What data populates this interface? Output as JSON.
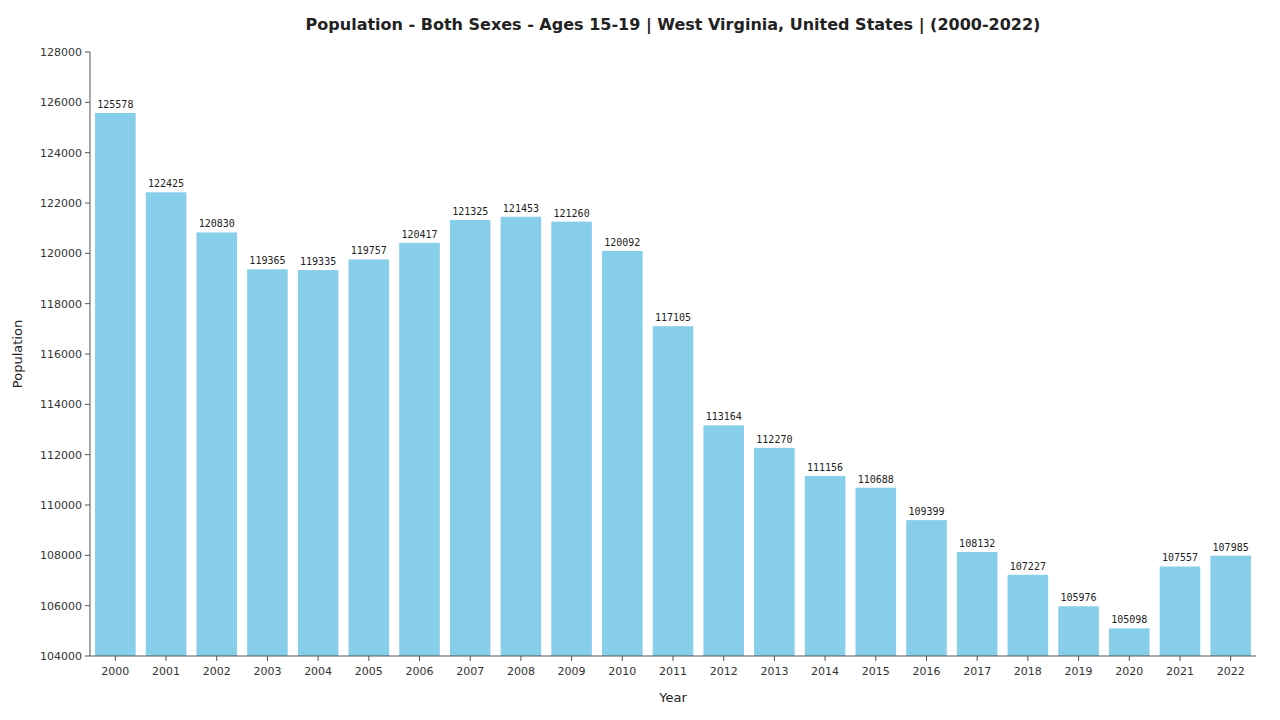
{
  "chart_data": {
    "type": "bar",
    "title": "Population - Both Sexes - Ages 15-19 | West Virginia, United States |  (2000-2022)",
    "xlabel": "Year",
    "ylabel": "Population",
    "categories": [
      "2000",
      "2001",
      "2002",
      "2003",
      "2004",
      "2005",
      "2006",
      "2007",
      "2008",
      "2009",
      "2010",
      "2011",
      "2012",
      "2013",
      "2014",
      "2015",
      "2016",
      "2017",
      "2018",
      "2019",
      "2020",
      "2021",
      "2022"
    ],
    "values": [
      125578,
      122425,
      120830,
      119365,
      119335,
      119757,
      120417,
      121325,
      121453,
      121260,
      120092,
      117105,
      113164,
      112270,
      111156,
      110688,
      109399,
      108132,
      107227,
      105976,
      105098,
      107557,
      107985
    ],
    "color": "#87CEEB",
    "ylim": [
      104000,
      128000
    ],
    "yticks": [
      104000,
      106000,
      108000,
      110000,
      112000,
      114000,
      116000,
      118000,
      120000,
      122000,
      124000,
      126000,
      128000
    ],
    "grid": false,
    "data_labels": true
  }
}
